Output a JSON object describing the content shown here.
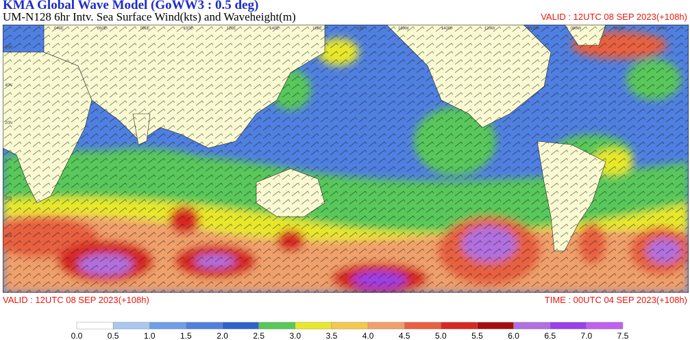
{
  "header": {
    "title": "KMA  Global Wave Model (GoWW3 : 0.5 deg)",
    "subtitle": "UM-N128  6hr Intv. Sea Surface Wind(kts) and Waveheight(m)",
    "valid_top": "VALID : 12UTC 08 SEP 2023(+108h)"
  },
  "footer": {
    "valid": "VALID : 12UTC 08 SEP 2023(+108h)",
    "time": "TIME : 00UTC 04 SEP 2023(+108h)"
  },
  "map": {
    "longitude_labels": [
      "040E",
      "060E",
      "080E",
      "100E",
      "120E",
      "140E",
      "160E",
      "180",
      "160W",
      "140W",
      "120W",
      "100W",
      "080W",
      "060W",
      "040W"
    ],
    "latitude_labels": [
      "60N",
      "40N",
      "20N",
      "0",
      "20S",
      "40S"
    ]
  },
  "legend": {
    "ticks": [
      "0.0",
      "0.5",
      "1.0",
      "1.5",
      "2.0",
      "2.5",
      "3.0",
      "3.5",
      "4.0",
      "4.5",
      "5.0",
      "5.5",
      "6.0",
      "6.5",
      "7.0",
      "7.5"
    ],
    "colors": [
      "#ffffff",
      "#a8c8f0",
      "#6f9ee8",
      "#4f7fe0",
      "#2f63c8",
      "#58c85a",
      "#e8e82a",
      "#f4c84a",
      "#f0a06a",
      "#e86040",
      "#d82820",
      "#a80c0c",
      "#b070e0",
      "#9a40e8",
      "#c060f0"
    ]
  }
}
